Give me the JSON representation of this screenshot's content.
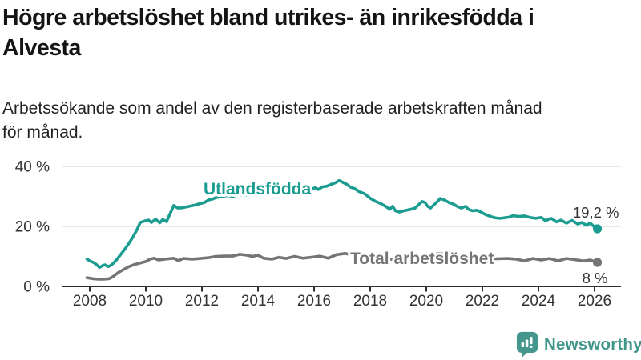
{
  "title": {
    "lines": [
      "Högre arbetslöshet bland utrikes- än inrikesfödda i",
      "Alvesta"
    ]
  },
  "subtitle": {
    "lines": [
      "Arbetssökande som andel av den registerbaserade arbetskraften månad",
      "för månad."
    ]
  },
  "branding": {
    "name": "Newsworthy",
    "icon": "newsworthy-bar-chart-bubble-icon",
    "color": "#41968c"
  },
  "chart_data": {
    "type": "line",
    "title": "Högre arbetslöshet bland utrikes- än inrikesfödda i Alvesta",
    "subtitle": "Arbetssökande som andel av den registerbaserade arbetskraften månad för månad.",
    "xlabel": "",
    "ylabel": "",
    "x_range": [
      2007.85,
      2026.35
    ],
    "y_range": [
      0,
      42
    ],
    "grid": "horizontal",
    "legend_position": "inline-labels",
    "colors": {
      "axis": "#2e2e2e",
      "grid": "#dcdcdc",
      "tick_text": "#333333",
      "annotation_text": "#333333"
    },
    "x_axis": {
      "ticks": [
        2008,
        2010,
        2012,
        2014,
        2016,
        2018,
        2020,
        2022,
        2024,
        2026
      ],
      "tick_labels": [
        "2008",
        "2010",
        "2012",
        "2014",
        "2016",
        "2018",
        "2020",
        "2022",
        "2024",
        "2026"
      ]
    },
    "y_axis": {
      "ticks": [
        {
          "value": 0,
          "label": "0 %"
        },
        {
          "value": 20,
          "label": "20 %"
        },
        {
          "value": 40,
          "label": "40 %"
        }
      ]
    },
    "series": [
      {
        "name": "Total arbetslöshet",
        "color": "#757575",
        "end_value": 8,
        "end_label": "8 %",
        "points": [
          [
            2007.9,
            2.9
          ],
          [
            2008.1,
            2.6
          ],
          [
            2008.3,
            2.4
          ],
          [
            2008.5,
            2.4
          ],
          [
            2008.7,
            2.6
          ],
          [
            2008.85,
            3.4
          ],
          [
            2009.0,
            4.5
          ],
          [
            2009.2,
            5.6
          ],
          [
            2009.4,
            6.6
          ],
          [
            2009.6,
            7.3
          ],
          [
            2009.8,
            7.8
          ],
          [
            2010.0,
            8.3
          ],
          [
            2010.15,
            9.1
          ],
          [
            2010.3,
            9.4
          ],
          [
            2010.45,
            8.8
          ],
          [
            2010.6,
            9.0
          ],
          [
            2010.8,
            9.2
          ],
          [
            2011.0,
            9.4
          ],
          [
            2011.15,
            8.6
          ],
          [
            2011.35,
            9.3
          ],
          [
            2011.65,
            9.1
          ],
          [
            2011.95,
            9.3
          ],
          [
            2012.25,
            9.6
          ],
          [
            2012.5,
            10.0
          ],
          [
            2012.8,
            10.1
          ],
          [
            2013.1,
            10.1
          ],
          [
            2013.35,
            10.7
          ],
          [
            2013.6,
            10.4
          ],
          [
            2013.8,
            10.0
          ],
          [
            2014.0,
            10.4
          ],
          [
            2014.2,
            9.4
          ],
          [
            2014.5,
            9.1
          ],
          [
            2014.75,
            9.7
          ],
          [
            2015.0,
            9.3
          ],
          [
            2015.3,
            10.0
          ],
          [
            2015.6,
            9.4
          ],
          [
            2015.9,
            9.7
          ],
          [
            2016.2,
            10.1
          ],
          [
            2016.5,
            9.4
          ],
          [
            2016.8,
            10.6
          ],
          [
            2017.1,
            11.0
          ],
          [
            2017.4,
            10.4
          ],
          [
            2017.7,
            10.0
          ],
          [
            2018.0,
            9.6
          ],
          [
            2018.3,
            9.3
          ],
          [
            2018.6,
            9.1
          ],
          [
            2019.0,
            9.0
          ],
          [
            2019.3,
            9.1
          ],
          [
            2019.6,
            9.3
          ],
          [
            2019.9,
            9.6
          ],
          [
            2020.2,
            10.4
          ],
          [
            2020.45,
            11.0
          ],
          [
            2020.7,
            10.7
          ],
          [
            2021.0,
            10.2
          ],
          [
            2021.3,
            9.8
          ],
          [
            2021.6,
            9.5
          ],
          [
            2021.9,
            9.3
          ],
          [
            2022.2,
            9.2
          ],
          [
            2022.5,
            9.2
          ],
          [
            2022.9,
            9.3
          ],
          [
            2023.2,
            9.1
          ],
          [
            2023.5,
            8.5
          ],
          [
            2023.8,
            9.3
          ],
          [
            2024.1,
            8.8
          ],
          [
            2024.4,
            9.3
          ],
          [
            2024.7,
            8.5
          ],
          [
            2025.0,
            9.3
          ],
          [
            2025.3,
            8.9
          ],
          [
            2025.6,
            8.5
          ],
          [
            2025.85,
            8.8
          ],
          [
            2026.0,
            8.3
          ],
          [
            2026.1,
            8.0
          ]
        ]
      },
      {
        "name": "Utlandsfödda",
        "color": "#1b9c90",
        "end_value": 19.2,
        "end_label": "19,2 %",
        "points": [
          [
            2007.9,
            9.1
          ],
          [
            2008.05,
            8.3
          ],
          [
            2008.15,
            7.9
          ],
          [
            2008.25,
            7.2
          ],
          [
            2008.35,
            6.3
          ],
          [
            2008.45,
            6.9
          ],
          [
            2008.55,
            7.2
          ],
          [
            2008.65,
            6.6
          ],
          [
            2008.75,
            7.0
          ],
          [
            2008.85,
            7.8
          ],
          [
            2008.95,
            8.8
          ],
          [
            2009.1,
            10.6
          ],
          [
            2009.25,
            12.4
          ],
          [
            2009.4,
            14.4
          ],
          [
            2009.55,
            16.6
          ],
          [
            2009.7,
            19.2
          ],
          [
            2009.8,
            21.3
          ],
          [
            2009.95,
            21.8
          ],
          [
            2010.1,
            22.1
          ],
          [
            2010.2,
            21.3
          ],
          [
            2010.35,
            22.4
          ],
          [
            2010.5,
            21.2
          ],
          [
            2010.6,
            22.3
          ],
          [
            2010.74,
            21.6
          ],
          [
            2010.89,
            24.8
          ],
          [
            2011.0,
            27.0
          ],
          [
            2011.14,
            26.1
          ],
          [
            2011.3,
            26.2
          ],
          [
            2011.5,
            26.6
          ],
          [
            2011.7,
            27.0
          ],
          [
            2011.9,
            27.5
          ],
          [
            2012.1,
            28.0
          ],
          [
            2012.23,
            28.8
          ],
          [
            2012.37,
            29.1
          ],
          [
            2012.5,
            29.6
          ],
          [
            2012.7,
            29.9
          ],
          [
            2012.9,
            30.3
          ],
          [
            2013.1,
            30.0
          ],
          [
            2013.3,
            30.6
          ],
          [
            2013.5,
            30.3
          ],
          [
            2013.7,
            30.7
          ],
          [
            2013.9,
            30.5
          ],
          [
            2014.1,
            30.9
          ],
          [
            2014.3,
            30.6
          ],
          [
            2014.5,
            31.0
          ],
          [
            2014.7,
            30.7
          ],
          [
            2014.9,
            31.1
          ],
          [
            2015.1,
            31.4
          ],
          [
            2015.3,
            31.1
          ],
          [
            2015.5,
            31.6
          ],
          [
            2015.7,
            32.0
          ],
          [
            2015.9,
            32.4
          ],
          [
            2016.05,
            32.9
          ],
          [
            2016.15,
            32.3
          ],
          [
            2016.3,
            33.2
          ],
          [
            2016.45,
            33.4
          ],
          [
            2016.6,
            34.0
          ],
          [
            2016.75,
            34.5
          ],
          [
            2016.89,
            35.3
          ],
          [
            2017.0,
            34.8
          ],
          [
            2017.15,
            34.1
          ],
          [
            2017.3,
            33.1
          ],
          [
            2017.45,
            32.6
          ],
          [
            2017.6,
            31.6
          ],
          [
            2017.8,
            30.9
          ],
          [
            2018.0,
            29.4
          ],
          [
            2018.2,
            28.3
          ],
          [
            2018.4,
            27.5
          ],
          [
            2018.55,
            26.7
          ],
          [
            2018.7,
            25.7
          ],
          [
            2018.8,
            26.7
          ],
          [
            2018.9,
            25.2
          ],
          [
            2019.05,
            24.8
          ],
          [
            2019.2,
            25.2
          ],
          [
            2019.45,
            25.7
          ],
          [
            2019.6,
            26.1
          ],
          [
            2019.7,
            27.0
          ],
          [
            2019.85,
            28.3
          ],
          [
            2019.95,
            28.0
          ],
          [
            2020.05,
            26.7
          ],
          [
            2020.15,
            26.1
          ],
          [
            2020.25,
            27.0
          ],
          [
            2020.4,
            28.3
          ],
          [
            2020.5,
            29.3
          ],
          [
            2020.65,
            28.8
          ],
          [
            2020.8,
            28.0
          ],
          [
            2020.95,
            27.5
          ],
          [
            2021.1,
            26.7
          ],
          [
            2021.25,
            26.1
          ],
          [
            2021.4,
            26.7
          ],
          [
            2021.5,
            25.7
          ],
          [
            2021.65,
            25.2
          ],
          [
            2021.8,
            25.4
          ],
          [
            2021.95,
            24.8
          ],
          [
            2022.1,
            24.0
          ],
          [
            2022.25,
            23.5
          ],
          [
            2022.4,
            23.0
          ],
          [
            2022.5,
            22.8
          ],
          [
            2022.65,
            22.7
          ],
          [
            2022.8,
            22.9
          ],
          [
            2022.95,
            23.1
          ],
          [
            2023.1,
            23.6
          ],
          [
            2023.3,
            23.3
          ],
          [
            2023.5,
            23.5
          ],
          [
            2023.7,
            23.0
          ],
          [
            2023.9,
            22.7
          ],
          [
            2024.1,
            23.0
          ],
          [
            2024.25,
            21.9
          ],
          [
            2024.45,
            22.7
          ],
          [
            2024.65,
            21.5
          ],
          [
            2024.8,
            22.1
          ],
          [
            2025.0,
            21.1
          ],
          [
            2025.2,
            22.0
          ],
          [
            2025.4,
            20.8
          ],
          [
            2025.55,
            21.3
          ],
          [
            2025.7,
            20.4
          ],
          [
            2025.85,
            21.1
          ],
          [
            2026.0,
            19.8
          ],
          [
            2026.1,
            19.2
          ]
        ]
      }
    ]
  }
}
